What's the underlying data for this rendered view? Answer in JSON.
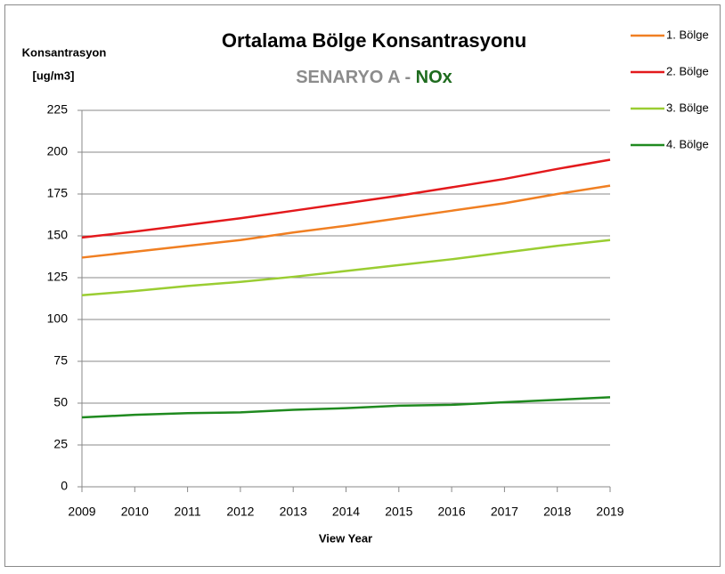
{
  "chart_data": {
    "type": "line",
    "title": "Ortalama Bölge Konsantrasyonu",
    "subtitle": [
      "SENARYO A -",
      "NOx"
    ],
    "subtitle_colors": [
      "#8c8c8c",
      "#1e6b1e"
    ],
    "y_label": [
      "Konsantrasyon",
      "[ug/m3]"
    ],
    "x_label": "View Year",
    "x": [
      2009,
      2010,
      2011,
      2012,
      2013,
      2014,
      2015,
      2016,
      2017,
      2018,
      2019
    ],
    "xlim": [
      2009,
      2019
    ],
    "xticks": [
      2009,
      2010,
      2011,
      2012,
      2013,
      2014,
      2015,
      2016,
      2017,
      2018,
      2019
    ],
    "ylim": [
      0,
      225
    ],
    "yticks": [
      0,
      25,
      50,
      75,
      100,
      125,
      150,
      175,
      200,
      225
    ],
    "grid": true,
    "legend": "right",
    "series": [
      {
        "name": "1. Bölge",
        "color": "#f07f22",
        "values": [
          137,
          140.5,
          144,
          147.5,
          152,
          156,
          160.5,
          165,
          169.5,
          175,
          180
        ]
      },
      {
        "name": "2. Bölge",
        "color": "#e3191c",
        "values": [
          149,
          152.5,
          156.5,
          160.5,
          165,
          169.5,
          174,
          179,
          184,
          190,
          195.5
        ]
      },
      {
        "name": "3. Bölge",
        "color": "#9acd32",
        "values": [
          114.5,
          117,
          120,
          122.5,
          125.5,
          129,
          132.5,
          136,
          140,
          144,
          147.5
        ]
      },
      {
        "name": "4. Bölge",
        "color": "#1f8a1f",
        "values": [
          41.5,
          43,
          44,
          44.5,
          46,
          47,
          48.5,
          49,
          50.5,
          52,
          53.5
        ]
      }
    ]
  }
}
